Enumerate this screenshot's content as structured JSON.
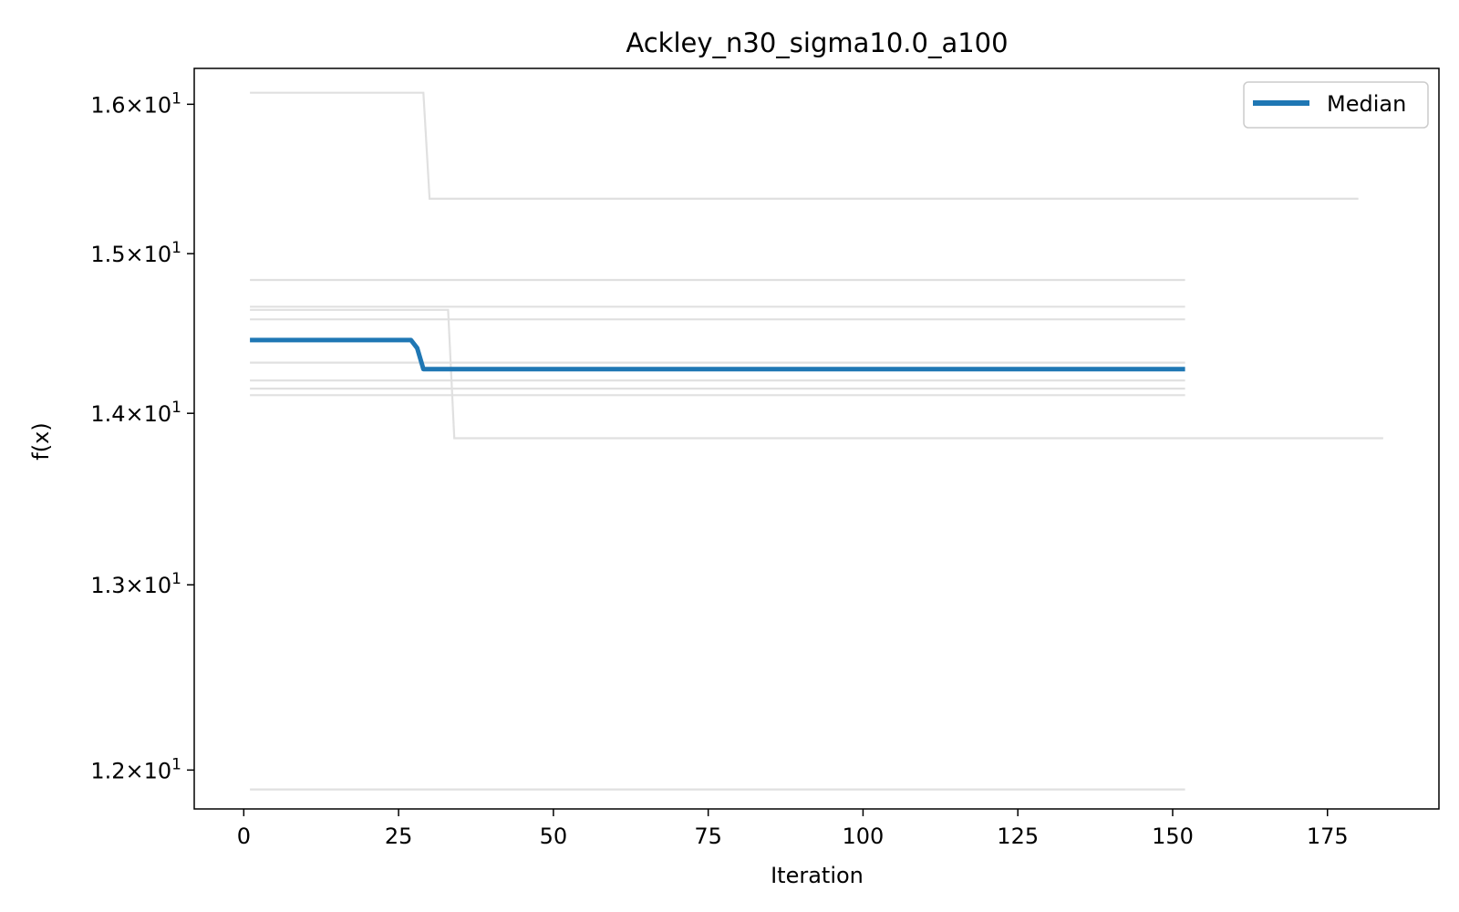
{
  "chart_data": {
    "type": "line",
    "title": "Ackley_n30_sigma10.0_a100",
    "xlabel": "Iteration",
    "ylabel": "f(x)",
    "xlim": [
      -8,
      193
    ],
    "ylim": [
      11.8,
      16.25
    ],
    "yscale": "log",
    "x_ticks": [
      0,
      25,
      50,
      75,
      100,
      125,
      150,
      175
    ],
    "y_ticks": [
      {
        "value": 16,
        "mantissa": "1.6",
        "exp": "1"
      },
      {
        "value": 15,
        "mantissa": "1.5",
        "exp": "1"
      },
      {
        "value": 14,
        "mantissa": "1.4",
        "exp": "1"
      },
      {
        "value": 13,
        "mantissa": "1.3",
        "exp": "1"
      },
      {
        "value": 12,
        "mantissa": "1.2",
        "exp": "1"
      }
    ],
    "grid": false,
    "legend": {
      "placement": "top-right",
      "entries": [
        "Median"
      ]
    },
    "colors": {
      "median": "#1f77b4",
      "runs": "#e0e0e0"
    },
    "series": [
      {
        "name": "Median",
        "role": "median",
        "x": [
          1,
          27,
          28,
          29,
          152
        ],
        "y": [
          14.45,
          14.45,
          14.4,
          14.27,
          14.27
        ]
      },
      {
        "role": "run",
        "x": [
          1,
          29,
          30,
          180
        ],
        "y": [
          16.08,
          16.08,
          15.36,
          15.36
        ]
      },
      {
        "role": "run",
        "x": [
          1,
          152
        ],
        "y": [
          14.83,
          14.83
        ]
      },
      {
        "role": "run",
        "x": [
          1,
          33,
          34,
          184
        ],
        "y": [
          14.64,
          14.64,
          13.85,
          13.85
        ]
      },
      {
        "role": "run",
        "x": [
          1,
          152
        ],
        "y": [
          14.66,
          14.66
        ]
      },
      {
        "role": "run",
        "x": [
          1,
          152
        ],
        "y": [
          14.58,
          14.58
        ]
      },
      {
        "role": "run",
        "x": [
          1,
          152
        ],
        "y": [
          14.31,
          14.31
        ]
      },
      {
        "role": "run",
        "x": [
          1,
          152
        ],
        "y": [
          14.2,
          14.2
        ]
      },
      {
        "role": "run",
        "x": [
          1,
          152
        ],
        "y": [
          14.15,
          14.15
        ]
      },
      {
        "role": "run",
        "x": [
          1,
          152
        ],
        "y": [
          14.11,
          14.11
        ]
      },
      {
        "role": "run",
        "x": [
          1,
          152
        ],
        "y": [
          11.9,
          11.9
        ]
      }
    ]
  }
}
